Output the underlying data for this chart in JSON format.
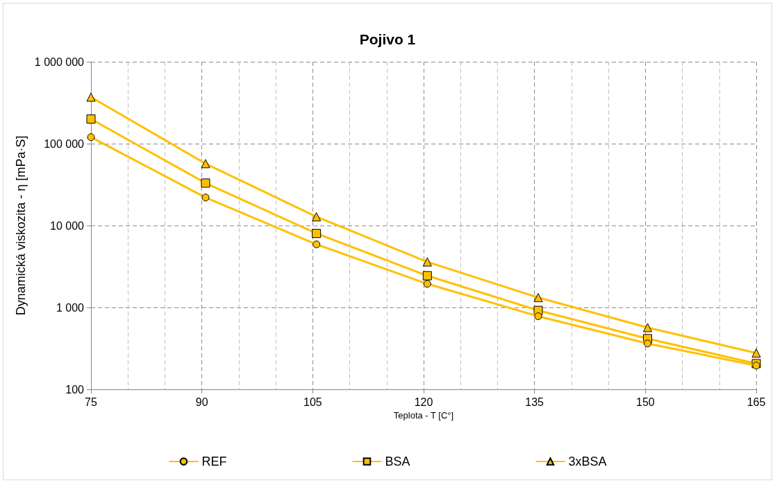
{
  "chart_data": {
    "type": "line",
    "title": "Pojivo 1",
    "xlabel": "Teplota - T [C°]",
    "ylabel": "Dynamická viskozita - η [mPa·S]",
    "x": [
      75,
      90.5,
      105.5,
      120.5,
      135.5,
      150.3,
      165
    ],
    "series": [
      {
        "name": "REF",
        "color": "#ffc000",
        "marker": "circle",
        "values": [
          120000,
          22000,
          5900,
          1940,
          780,
          363,
          195
        ]
      },
      {
        "name": "BSA",
        "color": "#ffc000",
        "marker": "square",
        "values": [
          200000,
          33000,
          8000,
          2440,
          920,
          416,
          206
        ]
      },
      {
        "name": "3xBSA",
        "color": "#ffc000",
        "marker": "triangle",
        "values": [
          370000,
          57000,
          12800,
          3600,
          1320,
          568,
          277
        ]
      }
    ],
    "log": "y",
    "xlim": [
      75,
      165
    ],
    "xticks": [
      75,
      90,
      105,
      120,
      135,
      150,
      165
    ],
    "ylim": [
      100,
      1000000
    ],
    "yticks": [
      100,
      {
        "value": 1000,
        "label": "1 000"
      },
      {
        "value": 10000,
        "label": "10 000"
      },
      {
        "value": 100000,
        "label": "100 000"
      },
      {
        "value": 1000000,
        "label": "1 000 000"
      }
    ],
    "grid": true,
    "legend": "bottom",
    "line_style": "solid"
  }
}
